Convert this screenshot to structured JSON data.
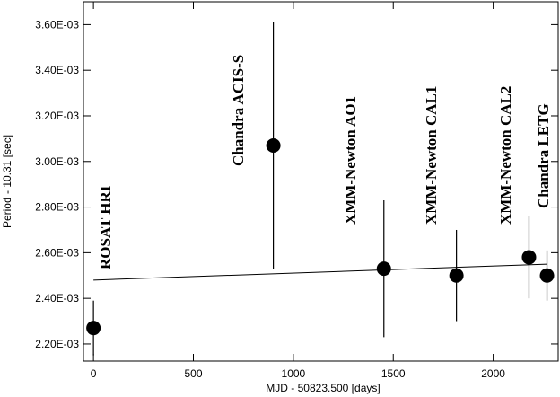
{
  "chart_data": {
    "type": "errorbar",
    "xlabel": "MJD - 50823.500 [days]",
    "ylabel": "Period - 10.31 [sec]",
    "x": [
      0,
      900,
      1453,
      1816,
      2179,
      2269
    ],
    "values": [
      0.00227,
      0.00307,
      0.00253,
      0.0025,
      0.00258,
      0.0025
    ],
    "errors": [
      0.00012,
      0.00054,
      0.0003,
      0.0002,
      0.00018,
      0.00011
    ],
    "color": "#000000",
    "fit": {
      "x": [
        0,
        2269
      ],
      "values": [
        0.00248,
        0.00255
      ]
    },
    "annotations": [
      "ROSAT HRI",
      "Chandra ACIS-S",
      "XMM-Newton AO1",
      "XMM-Newton CAL1",
      "XMM-Newton CAL2",
      "Chandra LETG"
    ],
    "xlim": [
      -50,
      2325
    ],
    "ylim": [
      0.002125,
      0.0037
    ],
    "xticks": [
      0,
      500,
      1000,
      1500,
      2000
    ],
    "yticks": [
      {
        "value": 0.0022,
        "label": "2.20E-03"
      },
      {
        "value": 0.0024,
        "label": "2.40E-03"
      },
      {
        "value": 0.0026,
        "label": "2.60E-03"
      },
      {
        "value": 0.0028,
        "label": "2.80E-03"
      },
      {
        "value": 0.003,
        "label": "3.00E-03"
      },
      {
        "value": 0.0032,
        "label": "3.20E-03"
      },
      {
        "value": 0.0034,
        "label": "3.40E-03"
      },
      {
        "value": 0.0036,
        "label": "3.60E-03"
      }
    ]
  }
}
